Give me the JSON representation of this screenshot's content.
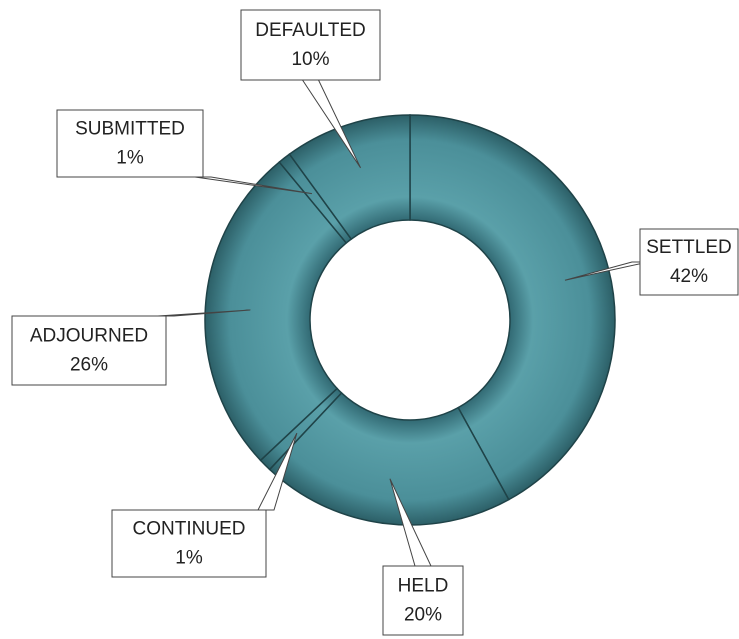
{
  "chart_data": {
    "type": "donut",
    "categories": [
      "SETTLED",
      "HELD",
      "CONTINUED",
      "ADJOURNED",
      "SUBMITTED",
      "DEFAULTED"
    ],
    "values": [
      42,
      20,
      1,
      26,
      1,
      10
    ],
    "value_labels": [
      "42%",
      "20%",
      "1%",
      "26%",
      "1%",
      "10%"
    ],
    "color": "#4b8f99"
  }
}
